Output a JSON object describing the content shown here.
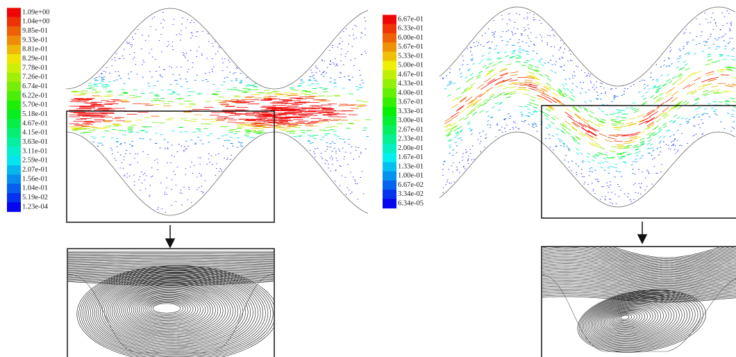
{
  "panels": [
    {
      "legend": {
        "labels": [
          "1.09e+00",
          "1.04e+00",
          "9.85e-01",
          "9.33e-01",
          "8.81e-01",
          "8.29e-01",
          "7.78e-01",
          "7.26e-01",
          "6.74e-01",
          "6.22e-01",
          "5.70e-01",
          "5.18e-01",
          "4.67e-01",
          "4.15e-01",
          "3.63e-01",
          "3.11e-01",
          "2.59e-01",
          "2.07e-01",
          "1.56e-01",
          "1.04e-01",
          "5.19e-02",
          "1.23e-04"
        ]
      }
    },
    {
      "legend": {
        "labels": [
          "6.67e-01",
          "6.33e-01",
          "6.00e-01",
          "5.67e-01",
          "5.33e-01",
          "5.00e-01",
          "4.67e-01",
          "4.33e-01",
          "4.00e-01",
          "3.67e-01",
          "3.33e-01",
          "3.00e-01",
          "2.67e-01",
          "2.33e-01",
          "2.00e-01",
          "1.67e-01",
          "1.33e-01",
          "1.00e-01",
          "6.67e-02",
          "3.34e-02",
          "6.34e-05"
        ]
      }
    }
  ]
}
